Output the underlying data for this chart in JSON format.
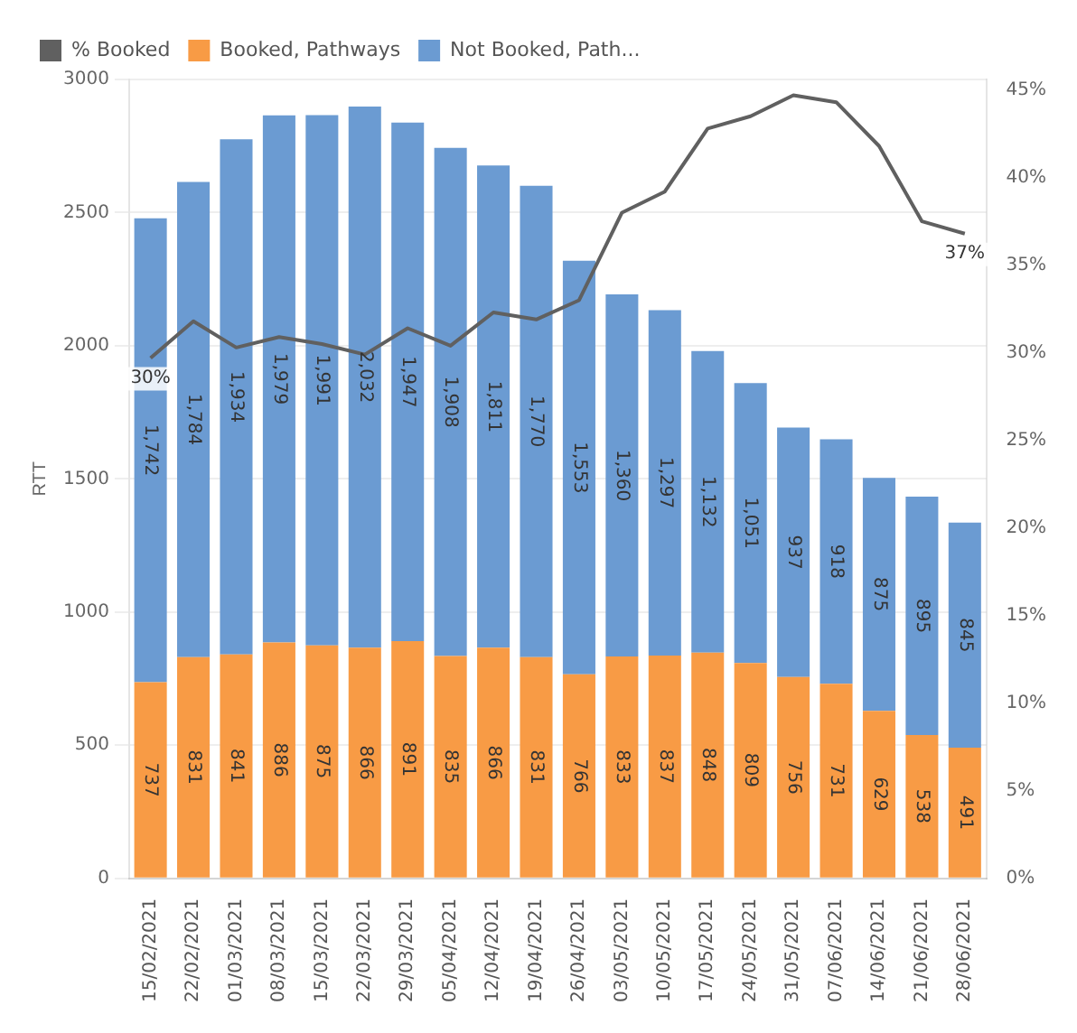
{
  "chart_data": {
    "type": "bar",
    "stacked": true,
    "ylabel": "RTT",
    "categories": [
      "15/02/2021",
      "22/02/2021",
      "01/03/2021",
      "08/03/2021",
      "15/03/2021",
      "22/03/2021",
      "29/03/2021",
      "05/04/2021",
      "12/04/2021",
      "19/04/2021",
      "26/04/2021",
      "03/05/2021",
      "10/05/2021",
      "17/05/2021",
      "24/05/2021",
      "31/05/2021",
      "07/06/2021",
      "14/06/2021",
      "21/06/2021",
      "28/06/2021"
    ],
    "series": [
      {
        "name": "% Booked",
        "type": "line",
        "axis": "y2",
        "color": "#606060",
        "values": [
          29.7,
          31.8,
          30.3,
          30.9,
          30.5,
          29.9,
          31.4,
          30.4,
          32.3,
          31.9,
          33.0,
          38.0,
          39.2,
          42.8,
          43.5,
          44.7,
          44.3,
          41.8,
          37.5,
          36.8
        ],
        "value_labels": [
          "30%",
          null,
          null,
          null,
          null,
          null,
          null,
          null,
          null,
          null,
          null,
          null,
          null,
          null,
          null,
          null,
          null,
          null,
          null,
          "37%"
        ]
      },
      {
        "name": "Booked, Pathways",
        "color": "#f89b45",
        "values": [
          737,
          831,
          841,
          886,
          875,
          866,
          891,
          835,
          866,
          831,
          766,
          833,
          837,
          848,
          809,
          756,
          731,
          629,
          538,
          491
        ],
        "value_labels": [
          "737",
          "831",
          "841",
          "886",
          "875",
          "866",
          "891",
          "835",
          "866",
          "831",
          "766",
          "833",
          "837",
          "848",
          "809",
          "756",
          "731",
          "629",
          "538",
          "491"
        ]
      },
      {
        "name": "Not Booked, Path...",
        "color": "#6b9bd2",
        "values": [
          1742,
          1784,
          1934,
          1979,
          1991,
          2032,
          1947,
          1908,
          1811,
          1770,
          1553,
          1360,
          1297,
          1132,
          1051,
          937,
          918,
          875,
          895,
          845
        ],
        "value_labels": [
          "1,742",
          "1,784",
          "1,934",
          "1,979",
          "1,991",
          "2,032",
          "1,947",
          "1,908",
          "1,811",
          "1,770",
          "1,553",
          "1,360",
          "1,297",
          "1,132",
          "1,051",
          "937",
          "918",
          "875",
          "895",
          "845"
        ]
      }
    ],
    "ylim": [
      0,
      3000
    ],
    "yticks": [
      0,
      500,
      1000,
      1500,
      2000,
      2500,
      3000
    ],
    "y2lim": [
      0,
      45.6
    ],
    "y2ticks": [
      {
        "value": 0,
        "label": "0%"
      },
      {
        "value": 5,
        "label": "5%"
      },
      {
        "value": 10,
        "label": "10%"
      },
      {
        "value": 15,
        "label": "15%"
      },
      {
        "value": 20,
        "label": "20%"
      },
      {
        "value": 25,
        "label": "25%"
      },
      {
        "value": 30,
        "label": "30%"
      },
      {
        "value": 35,
        "label": "35%"
      },
      {
        "value": 40,
        "label": "40%"
      },
      {
        "value": 45,
        "label": "45%"
      }
    ],
    "grid": "y",
    "legend": "top left",
    "marker": "none",
    "line_style": "solid"
  }
}
